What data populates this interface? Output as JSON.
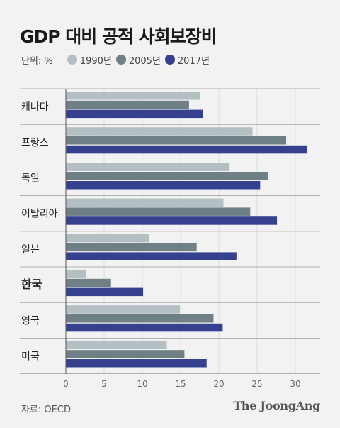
{
  "title": "GDP 대비 공적 사회보장비",
  "legend": {
    "unit": "단위: %",
    "items": [
      {
        "label": "1990년",
        "color": "#b3bfc3"
      },
      {
        "label": "2005년",
        "color": "#6e7f85"
      },
      {
        "label": "2017년",
        "color": "#35418f"
      }
    ]
  },
  "source": "자료: OECD",
  "logo": "The JoongAng",
  "chart_data": {
    "type": "bar",
    "orientation": "horizontal",
    "categories": [
      "캐나다",
      "프랑스",
      "독일",
      "이탈리아",
      "일본",
      "한국",
      "영국",
      "미국"
    ],
    "highlight_category": "한국",
    "series": [
      {
        "name": "1990년",
        "color": "#b3bfc3",
        "values": [
          17.5,
          24.4,
          21.4,
          20.6,
          10.9,
          2.6,
          14.9,
          13.2
        ]
      },
      {
        "name": "2005년",
        "color": "#6e7f85",
        "values": [
          16.1,
          28.8,
          26.4,
          24.1,
          17.1,
          5.9,
          19.3,
          15.5
        ]
      },
      {
        "name": "2017년",
        "color": "#35418f",
        "values": [
          17.9,
          31.5,
          25.4,
          27.6,
          22.3,
          10.1,
          20.5,
          18.4
        ]
      }
    ],
    "xlim": [
      0,
      32
    ],
    "xticks": [
      0,
      5,
      10,
      15,
      20,
      25,
      30
    ],
    "grid": true,
    "legend_position": "top-left"
  }
}
